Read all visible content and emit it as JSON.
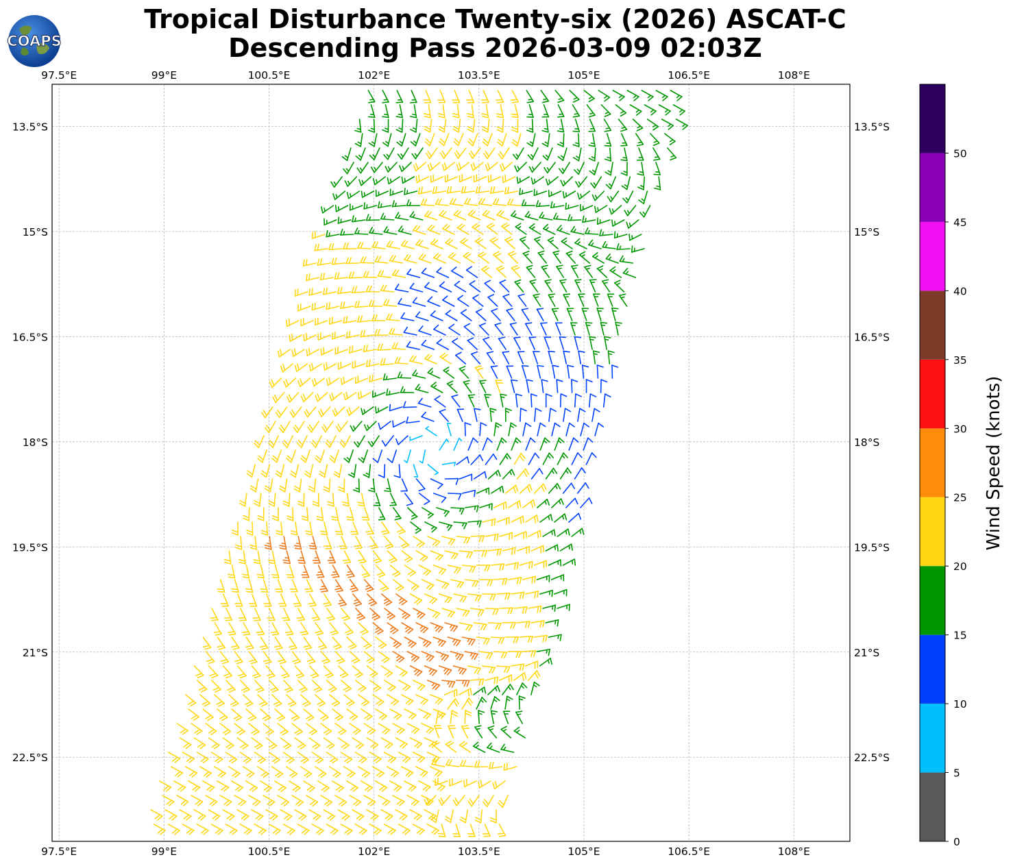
{
  "title": {
    "line1": "Tropical Disturbance Twenty-six (2026) ASCAT-C",
    "line2": "Descending Pass 2026-03-09 02:03Z"
  },
  "logo": {
    "text": "COAPS"
  },
  "map": {
    "lon_range": [
      97.4,
      108.8
    ],
    "lat_range": [
      -12.9,
      -23.7
    ],
    "lon_ticks": [
      {
        "v": 97.5,
        "label": "97.5°E"
      },
      {
        "v": 99,
        "label": "99°E"
      },
      {
        "v": 100.5,
        "label": "100.5°E"
      },
      {
        "v": 102,
        "label": "102°E"
      },
      {
        "v": 103.5,
        "label": "103.5°E"
      },
      {
        "v": 105,
        "label": "105°E"
      },
      {
        "v": 106.5,
        "label": "106.5°E"
      },
      {
        "v": 108,
        "label": "108°E"
      }
    ],
    "lat_ticks": [
      {
        "v": -13.5,
        "label": "13.5°S"
      },
      {
        "v": -15,
        "label": "15°S"
      },
      {
        "v": -16.5,
        "label": "16.5°S"
      },
      {
        "v": -18,
        "label": "18°S"
      },
      {
        "v": -19.5,
        "label": "19.5°S"
      },
      {
        "v": -21,
        "label": "21°S"
      },
      {
        "v": -22.5,
        "label": "22.5°S"
      }
    ],
    "storm_center": {
      "lon": 102.85,
      "lat": -18.1
    }
  },
  "colorbar": {
    "label": "Wind Speed (knots)",
    "ticks": [
      0,
      5,
      10,
      15,
      20,
      25,
      30,
      35,
      40,
      45,
      50
    ],
    "bins": [
      {
        "min": 0,
        "max": 5,
        "color": "#595959"
      },
      {
        "min": 5,
        "max": 10,
        "color": "#00bfff"
      },
      {
        "min": 10,
        "max": 15,
        "color": "#0040ff"
      },
      {
        "min": 15,
        "max": 20,
        "color": "#009600"
      },
      {
        "min": 20,
        "max": 25,
        "color": "#ffd715"
      },
      {
        "min": 25,
        "max": 30,
        "color": "#ff8c0a"
      },
      {
        "min": 30,
        "max": 35,
        "color": "#ff1010"
      },
      {
        "min": 35,
        "max": 40,
        "color": "#7d3c2a"
      },
      {
        "min": 40,
        "max": 45,
        "color": "#f00ff0"
      },
      {
        "min": 45,
        "max": 50,
        "color": "#8a00b4"
      },
      {
        "min": 50,
        "max": 55,
        "color": "#2d0060"
      }
    ]
  },
  "barb_colors": {
    "calm": "#00bfff",
    "light": "#0040ff",
    "moderate": "#009600",
    "fresh": "#ffd715",
    "strong": "#ee7a1a"
  }
}
